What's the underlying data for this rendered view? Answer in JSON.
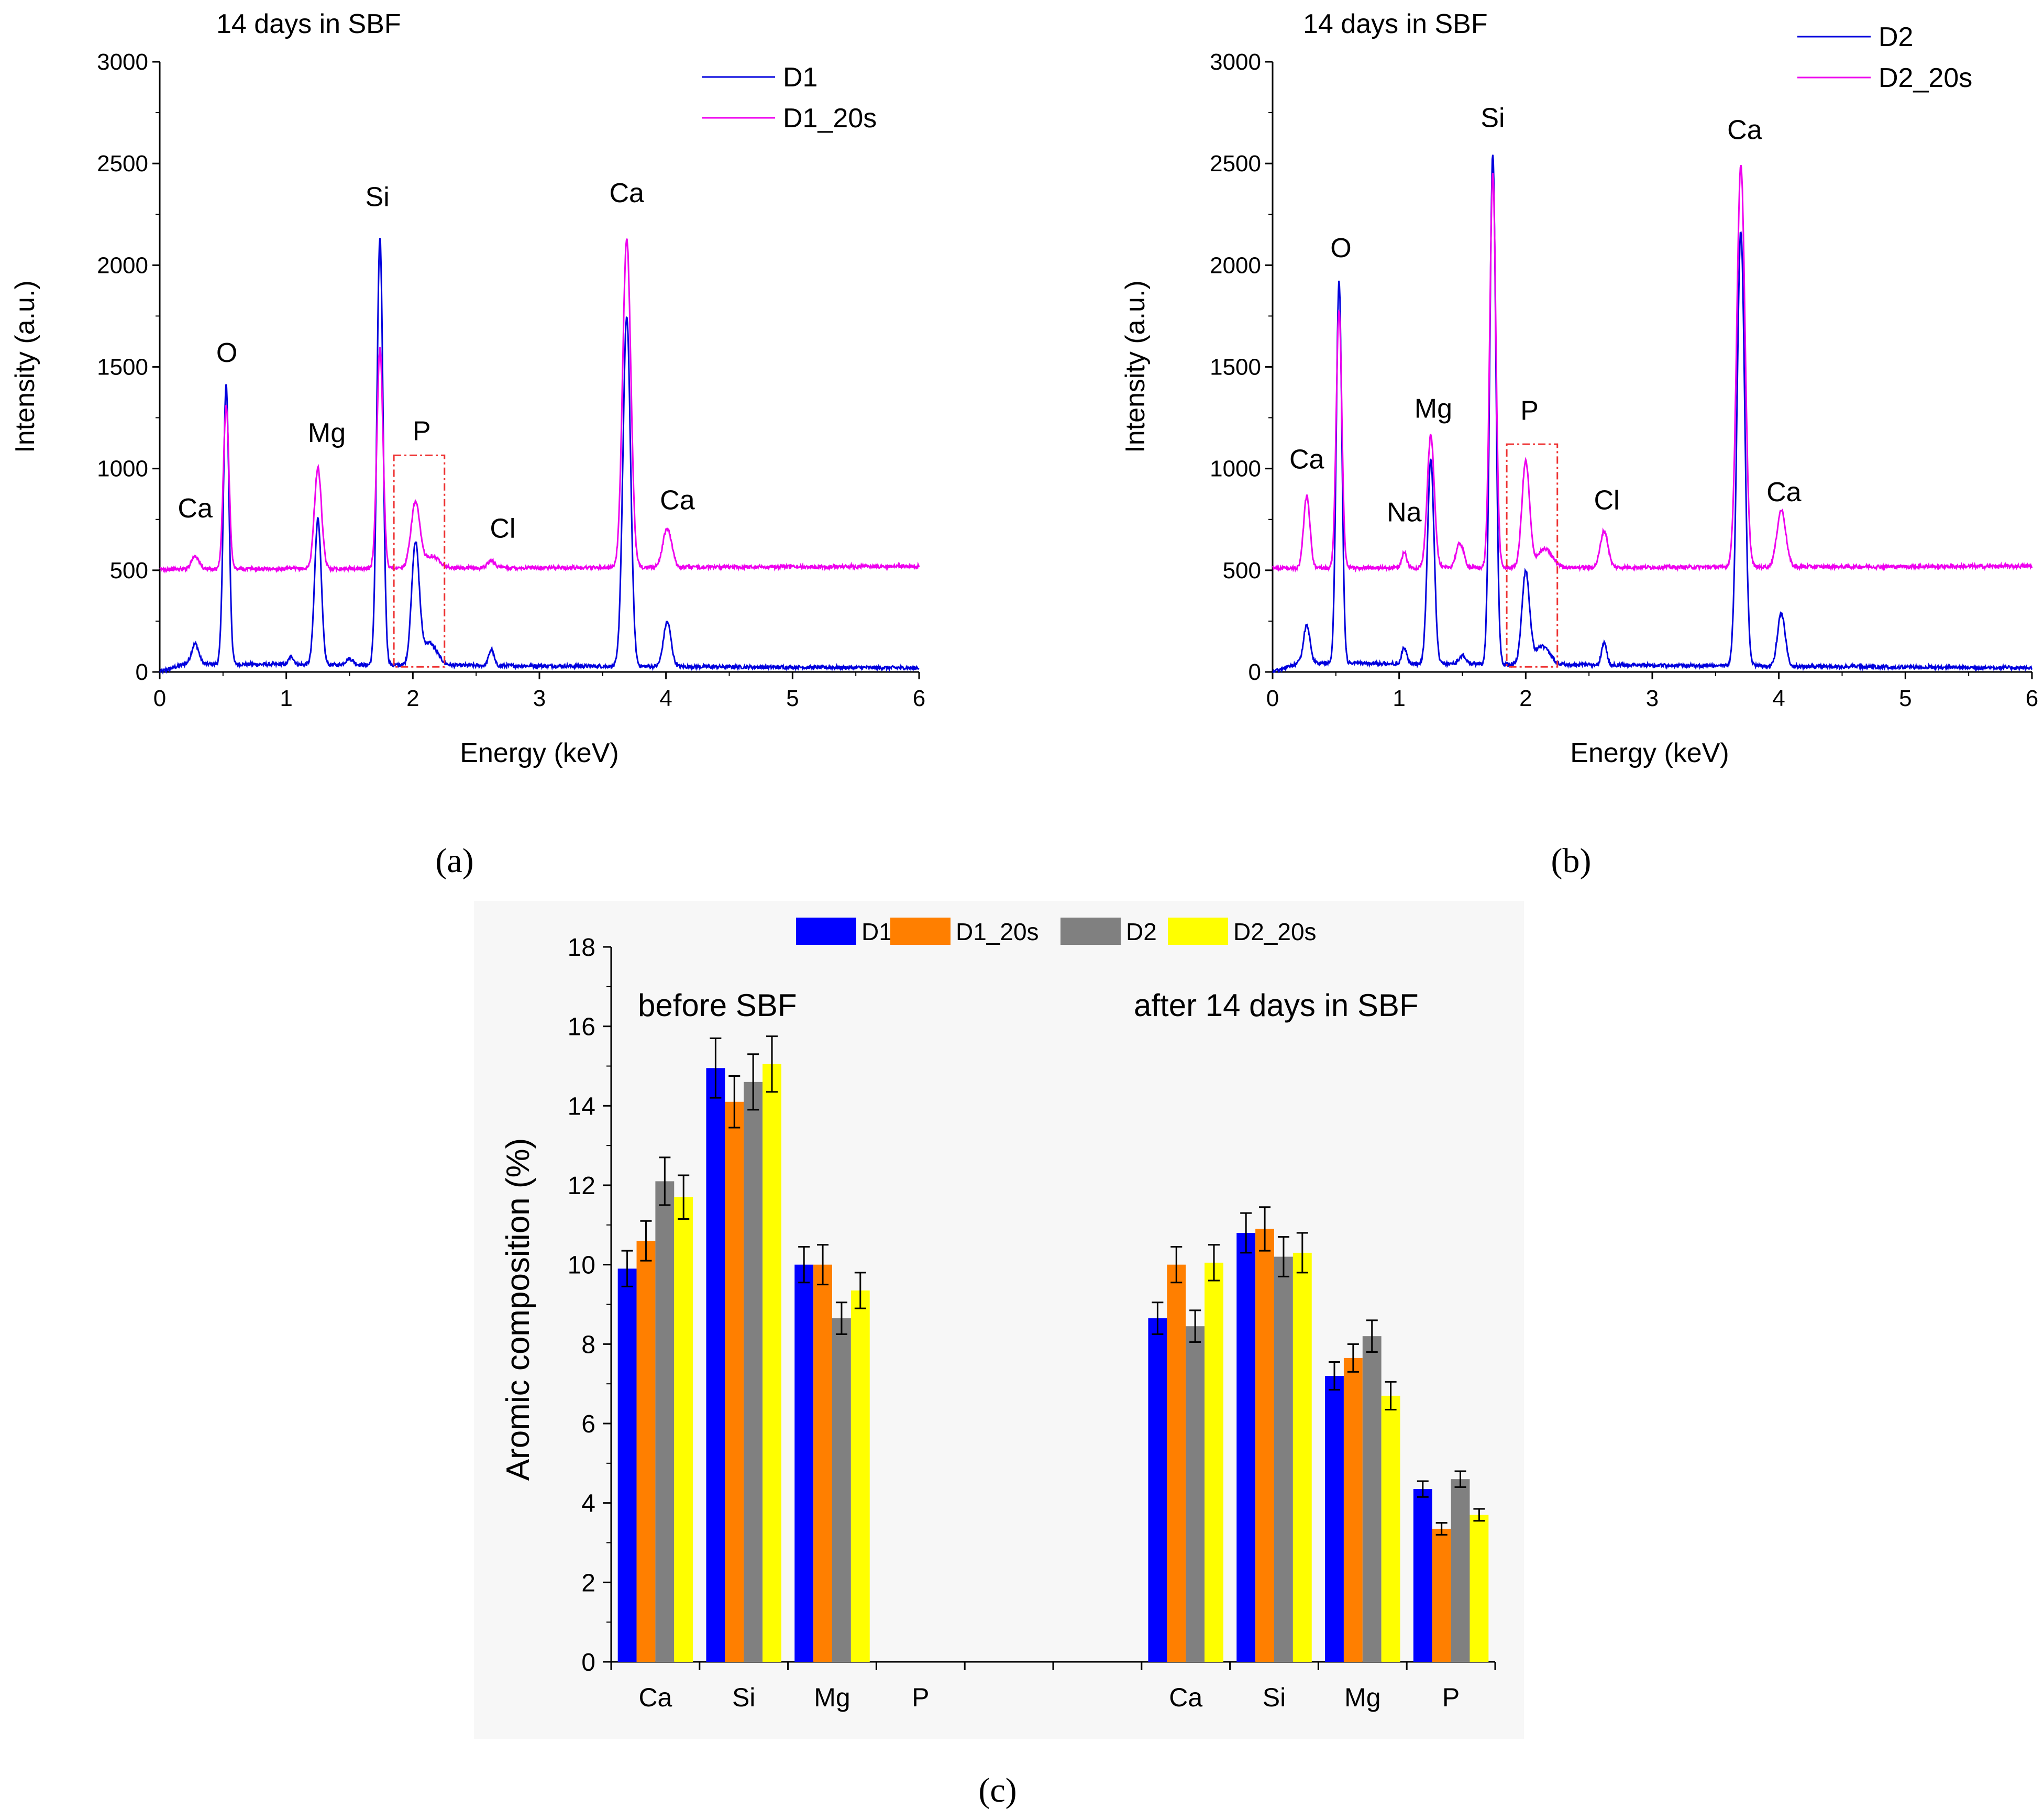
{
  "colors": {
    "d1": "#0000dd",
    "d1_20s": "#ee00ee",
    "box": "#ee3333",
    "bar_d1": "#0000ff",
    "bar_d1_20s": "#ff7f00",
    "bar_d2": "#808080",
    "bar_d2_20s": "#ffff00",
    "panel_c_bg": "#f7f7f7"
  },
  "chart_data": [
    {
      "id": "a",
      "type": "line",
      "title": "14 days in SBF",
      "panel_label": "(a)",
      "xlabel": "Energy (keV)",
      "ylabel": "Intensity (a.u.)",
      "xlim": [
        0,
        6
      ],
      "ylim": [
        0,
        3000
      ],
      "xticks": [
        0,
        1,
        2,
        3,
        4,
        5,
        6
      ],
      "yticks": [
        0,
        500,
        1000,
        1500,
        2000,
        2500,
        3000
      ],
      "legend": [
        "D1",
        "D1_20s"
      ],
      "series": [
        {
          "name": "D1",
          "baseline": 40,
          "tail": 20,
          "peaks": [
            [
              0.28,
              100,
              0.028
            ],
            [
              0.525,
              1370,
              0.022
            ],
            [
              1.04,
              40,
              0.02
            ],
            [
              1.25,
              720,
              0.026
            ],
            [
              1.5,
              30,
              0.03
            ],
            [
              1.74,
              2100,
              0.024
            ],
            [
              2.02,
              590,
              0.03
            ],
            [
              2.13,
              110,
              0.06
            ],
            [
              2.62,
              80,
              0.02
            ],
            [
              3.69,
              1720,
              0.03
            ],
            [
              4.01,
              220,
              0.03
            ]
          ]
        },
        {
          "name": "D1_20s",
          "baseline": 505,
          "tail": 520,
          "peaks": [
            [
              0.28,
              65,
              0.03
            ],
            [
              0.525,
              800,
              0.022
            ],
            [
              1.25,
              495,
              0.028
            ],
            [
              1.74,
              1080,
              0.024
            ],
            [
              2.02,
              320,
              0.035
            ],
            [
              2.15,
              60,
              0.06
            ],
            [
              2.62,
              35,
              0.03
            ],
            [
              3.69,
              1620,
              0.032
            ],
            [
              4.01,
              190,
              0.035
            ]
          ]
        }
      ],
      "annotations": [
        {
          "text": "Ca",
          "x": 0.28,
          "y": 760
        },
        {
          "text": "O",
          "x": 0.53,
          "y": 1525
        },
        {
          "text": "Mg",
          "x": 1.32,
          "y": 1130
        },
        {
          "text": "Si",
          "x": 1.72,
          "y": 2290
        },
        {
          "text": "P",
          "x": 2.07,
          "y": 1140
        },
        {
          "text": "Cl",
          "x": 2.71,
          "y": 660
        },
        {
          "text": "Ca",
          "x": 3.69,
          "y": 2310
        },
        {
          "text": "Ca",
          "x": 4.09,
          "y": 800
        }
      ],
      "highlight_box": {
        "x0": 1.85,
        "x1": 2.25,
        "y0": 25,
        "y1": 1065
      }
    },
    {
      "id": "b",
      "type": "line",
      "title": "14 days in SBF",
      "panel_label": "(b)",
      "xlabel": "Energy (keV)",
      "ylabel": "Intensity (a.u.)",
      "xlim": [
        0,
        6
      ],
      "ylim": [
        0,
        3000
      ],
      "xticks": [
        0,
        1,
        2,
        3,
        4,
        5,
        6
      ],
      "yticks": [
        0,
        500,
        1000,
        1500,
        2000,
        2500,
        3000
      ],
      "legend": [
        "D2",
        "D2_20s"
      ],
      "series": [
        {
          "name": "D2",
          "baseline": 45,
          "tail": 20,
          "peaks": [
            [
              0.27,
              190,
              0.025
            ],
            [
              0.525,
              1880,
              0.022
            ],
            [
              1.04,
              80,
              0.02
            ],
            [
              1.25,
              1010,
              0.026
            ],
            [
              1.5,
              40,
              0.03
            ],
            [
              1.74,
              2510,
              0.024
            ],
            [
              2.0,
              450,
              0.03
            ],
            [
              2.13,
              90,
              0.06
            ],
            [
              2.62,
              110,
              0.02
            ],
            [
              3.7,
              2140,
              0.03
            ],
            [
              4.02,
              260,
              0.03
            ]
          ]
        },
        {
          "name": "D2_20s",
          "baseline": 510,
          "tail": 520,
          "peaks": [
            [
              0.27,
              355,
              0.025
            ],
            [
              0.525,
              1270,
              0.022
            ],
            [
              1.04,
              75,
              0.02
            ],
            [
              1.25,
              650,
              0.028
            ],
            [
              1.48,
              120,
              0.03
            ],
            [
              1.74,
              1940,
              0.024
            ],
            [
              2.0,
              520,
              0.03
            ],
            [
              2.15,
              90,
              0.06
            ],
            [
              2.62,
              180,
              0.03
            ],
            [
              3.7,
              1980,
              0.032
            ],
            [
              4.02,
              280,
              0.035
            ]
          ]
        }
      ],
      "annotations": [
        {
          "text": "Ca",
          "x": 0.27,
          "y": 1000
        },
        {
          "text": "O",
          "x": 0.54,
          "y": 2040
        },
        {
          "text": "Na",
          "x": 1.04,
          "y": 740
        },
        {
          "text": "Mg",
          "x": 1.27,
          "y": 1250
        },
        {
          "text": "Si",
          "x": 1.74,
          "y": 2680
        },
        {
          "text": "P",
          "x": 2.03,
          "y": 1240
        },
        {
          "text": "Cl",
          "x": 2.64,
          "y": 800
        },
        {
          "text": "Ca",
          "x": 3.73,
          "y": 2620
        },
        {
          "text": "Ca",
          "x": 4.04,
          "y": 840
        }
      ],
      "highlight_box": {
        "x0": 1.85,
        "x1": 2.25,
        "y0": 25,
        "y1": 1120
      }
    },
    {
      "id": "c",
      "type": "bar",
      "panel_label": "(c)",
      "ylabel": "Aromic composition (%)",
      "ylim": [
        0,
        18
      ],
      "yticks": [
        0,
        2,
        4,
        6,
        8,
        10,
        12,
        14,
        16,
        18
      ],
      "categories": [
        "Ca",
        "Si",
        "Mg",
        "P",
        "",
        "",
        "Ca",
        "Si",
        "Mg",
        "P"
      ],
      "group_labels": [
        "before SBF",
        "after 14 days in SBF"
      ],
      "series": [
        {
          "name": "D1",
          "values": [
            9.9,
            14.95,
            10.0,
            null,
            null,
            null,
            8.65,
            10.8,
            7.2,
            4.35
          ],
          "errors": [
            0.45,
            0.75,
            0.45,
            null,
            null,
            null,
            0.4,
            0.5,
            0.35,
            0.2
          ]
        },
        {
          "name": "D1_20s",
          "values": [
            10.6,
            14.1,
            10.0,
            null,
            null,
            null,
            10.0,
            10.9,
            7.65,
            3.35
          ],
          "errors": [
            0.5,
            0.65,
            0.5,
            null,
            null,
            null,
            0.45,
            0.55,
            0.35,
            0.15
          ]
        },
        {
          "name": "D2",
          "values": [
            12.1,
            14.6,
            8.65,
            null,
            null,
            null,
            8.45,
            10.2,
            8.2,
            4.6
          ],
          "errors": [
            0.6,
            0.7,
            0.4,
            null,
            null,
            null,
            0.4,
            0.5,
            0.4,
            0.2
          ]
        },
        {
          "name": "D2_20s",
          "values": [
            11.7,
            15.05,
            9.35,
            null,
            null,
            null,
            10.05,
            10.3,
            6.7,
            3.7
          ],
          "errors": [
            0.55,
            0.7,
            0.45,
            null,
            null,
            null,
            0.45,
            0.5,
            0.35,
            0.15
          ]
        }
      ]
    }
  ]
}
